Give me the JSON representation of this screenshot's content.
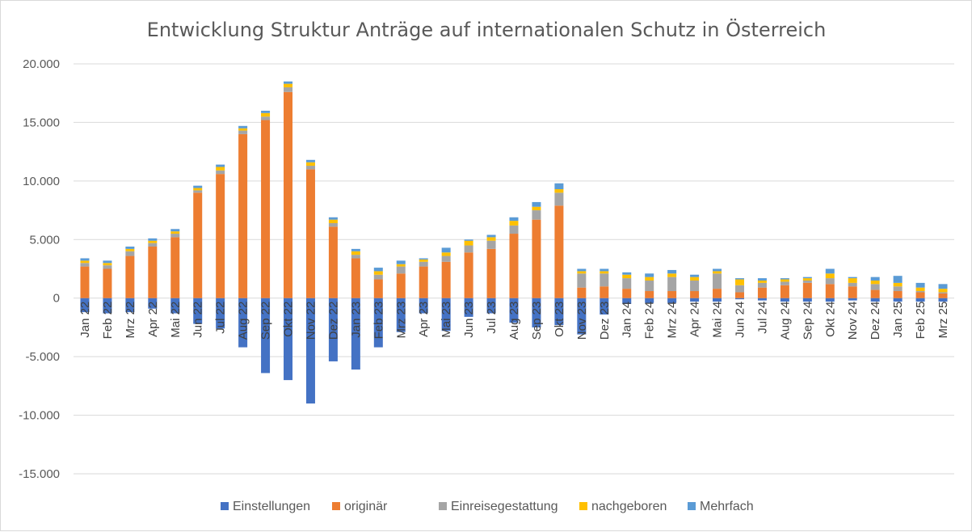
{
  "chart_data": {
    "type": "bar",
    "stacked": true,
    "title": "Entwicklung Struktur Anträge auf internationalen Schutz  in Österreich",
    "xlabel": "",
    "ylabel": "",
    "ylim": [
      -15000,
      20000
    ],
    "yticks": [
      20000,
      15000,
      10000,
      5000,
      0,
      -5000,
      -10000,
      -15000
    ],
    "ytick_labels": [
      "20.000",
      "15.000",
      "10.000",
      "5.000",
      "0",
      "-5.000",
      "-10.000",
      "-15.000"
    ],
    "grid": true,
    "legend_position": "bottom",
    "categories": [
      "Jan 22",
      "Feb 22",
      "Mrz 22",
      "Apr 22",
      "Mai 22",
      "Jun 22",
      "Jul 22",
      "Aug 22",
      "Sep 22",
      "Okt 22",
      "Nov 22",
      "Dez 22",
      "Jan 23",
      "Feb 23",
      "Mrz 23",
      "Apr 23",
      "Mai 23",
      "Jun 23",
      "Jul 23",
      "Aug 23",
      "Sep 23",
      "Okt 23",
      "Nov 23",
      "Dez 23",
      "Jan 24",
      "Feb 24",
      "Mrz 24",
      "Apr 24",
      "Mai 24",
      "Jun 24",
      "Jul 24",
      "Aug 24",
      "Sep 24",
      "Okt 24",
      "Nov 24",
      "Dez 24",
      "Jan 25",
      "Feb 25",
      "Mrz 25"
    ],
    "series": [
      {
        "name": "Einstellungen",
        "color": "#4472c4",
        "values": [
          -1200,
          -1300,
          -1200,
          -900,
          -1300,
          -2200,
          -2600,
          -4200,
          -6400,
          -7000,
          -9000,
          -5400,
          -6100,
          -4200,
          -2900,
          -1300,
          -2800,
          -1600,
          -1300,
          -2100,
          -2500,
          -2300,
          -3100,
          -1400,
          -500,
          -400,
          -400,
          -300,
          -300,
          -100,
          -200,
          -300,
          -300,
          -300,
          -200,
          -300,
          -300,
          -300,
          -300
        ]
      },
      {
        "name": "originär",
        "color": "#ed7d31",
        "values": [
          2700,
          2500,
          3600,
          4400,
          5200,
          9000,
          10600,
          14000,
          15200,
          17600,
          11000,
          6100,
          3400,
          1600,
          2100,
          2700,
          3100,
          3900,
          4200,
          5500,
          6700,
          7900,
          900,
          1000,
          800,
          600,
          600,
          600,
          800,
          500,
          900,
          1100,
          1300,
          1200,
          1000,
          700,
          600,
          500,
          400
        ]
      },
      {
        "name": "Einreisegestattung",
        "color": "#a5a5a5",
        "values": [
          300,
          300,
          400,
          300,
          300,
          200,
          300,
          300,
          300,
          400,
          300,
          300,
          300,
          400,
          600,
          400,
          500,
          600,
          700,
          700,
          800,
          1100,
          1200,
          1100,
          900,
          900,
          1200,
          900,
          1300,
          600,
          400,
          300,
          200,
          500,
          300,
          500,
          400,
          100,
          100
        ]
      },
      {
        "name": "nachgeboren",
        "color": "#ffc000",
        "values": [
          200,
          200,
          200,
          200,
          200,
          200,
          300,
          200,
          300,
          300,
          300,
          300,
          300,
          300,
          200,
          200,
          300,
          400,
          300,
          400,
          300,
          300,
          200,
          200,
          300,
          300,
          300,
          300,
          200,
          500,
          200,
          200,
          200,
          400,
          400,
          300,
          300,
          300,
          300
        ]
      },
      {
        "name": "Mehrfach",
        "color": "#5b9bd5",
        "values": [
          200,
          200,
          200,
          200,
          200,
          200,
          200,
          200,
          200,
          200,
          200,
          200,
          200,
          300,
          300,
          100,
          400,
          100,
          200,
          300,
          400,
          500,
          200,
          200,
          200,
          300,
          300,
          200,
          200,
          100,
          200,
          100,
          100,
          400,
          100,
          300,
          600,
          400,
          400
        ]
      }
    ]
  }
}
